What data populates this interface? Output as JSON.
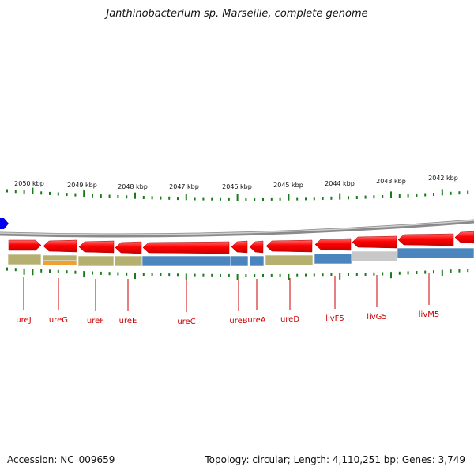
{
  "title": "Janthinobacterium sp. Marseille, complete genome",
  "footer": {
    "accession": "Accession: NC_009659",
    "summary": "Topology: circular; Length: 4,110,251 bp; Genes: 3,749"
  },
  "scale_labels": [
    "2050 kbp",
    "2049 kbp",
    "2048 kbp",
    "2047 kbp",
    "2046 kbp",
    "2045 kbp",
    "2044 kbp",
    "2043 kbp",
    "2042 kbp"
  ],
  "genes": [
    {
      "name": "ureJ"
    },
    {
      "name": "ureG"
    },
    {
      "name": "ureF"
    },
    {
      "name": "ureE"
    },
    {
      "name": "ureC"
    },
    {
      "name": "ureB"
    },
    {
      "name": "ureA"
    },
    {
      "name": "ureD"
    },
    {
      "name": "livF5"
    },
    {
      "name": "livG5"
    },
    {
      "name": "livM5"
    }
  ],
  "colors": {
    "gene_arrow": "#ff0000",
    "backbone": "#8a8a8a",
    "tick": "#1a7a1a",
    "label": "#cc0000",
    "cog_olive": "#b5b070",
    "cog_orange": "#f0a030",
    "cog_blue": "#4a86bd",
    "cog_gray": "#c8c8c8",
    "marker": "#0000ee"
  }
}
